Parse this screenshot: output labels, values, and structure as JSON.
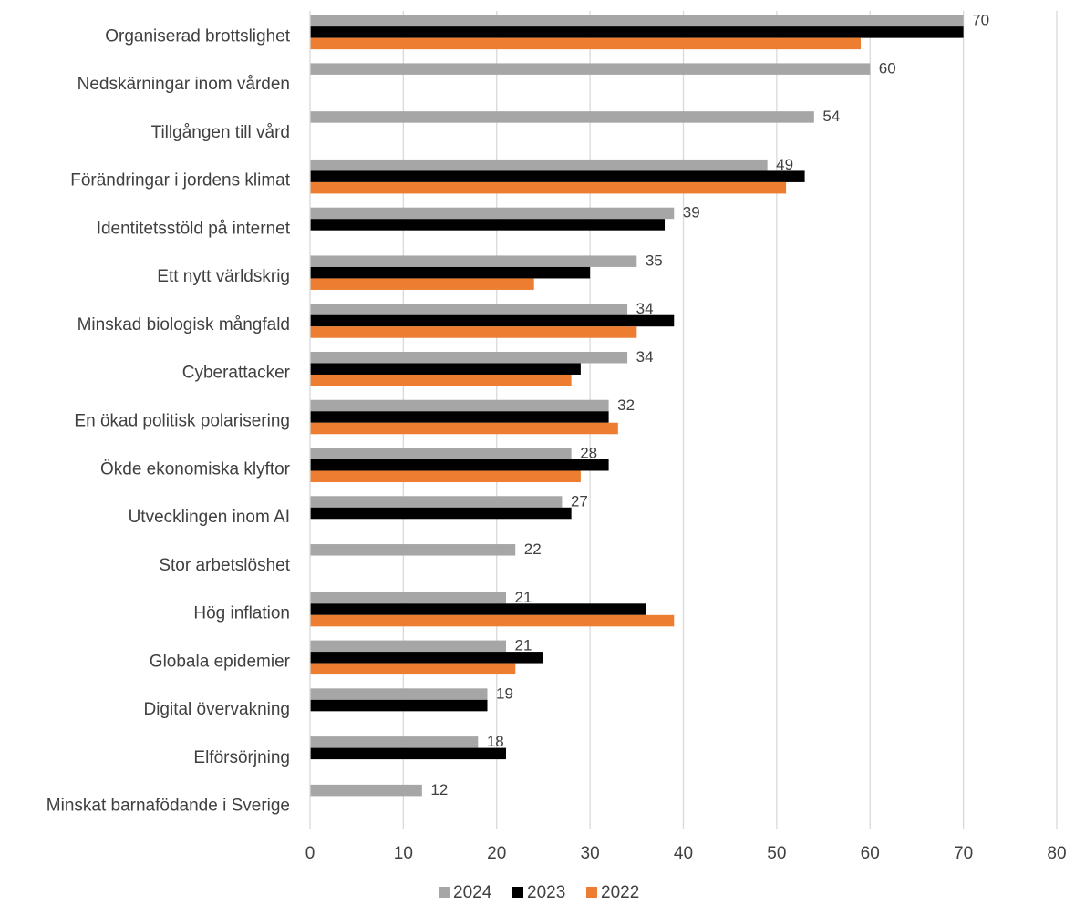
{
  "chart_data": {
    "type": "bar",
    "orientation": "horizontal",
    "categories": [
      "Organiserad brottslighet",
      "Nedskärningar inom vården",
      "Tillgången till vård",
      "Förändringar i jordens klimat",
      "Identitetsstöld på internet",
      "Ett nytt världskrig",
      "Minskad biologisk mångfald",
      "Cyberattacker",
      "En ökad politisk polarisering",
      "Ökde ekonomiska klyftor",
      "Utvecklingen inom AI",
      "Stor arbetslöshet",
      "Hög inflation",
      "Globala epidemier",
      "Digital övervakning",
      "Elförsörjning",
      "Minskat barnafödande i Sverige"
    ],
    "series": [
      {
        "name": "2024",
        "color": "#a6a6a6",
        "values": [
          70,
          60,
          54,
          49,
          39,
          35,
          34,
          34,
          32,
          28,
          27,
          22,
          21,
          21,
          19,
          18,
          12
        ]
      },
      {
        "name": "2023",
        "color": "#000000",
        "values": [
          70,
          null,
          null,
          53,
          38,
          30,
          39,
          29,
          32,
          32,
          28,
          null,
          36,
          25,
          19,
          21,
          null
        ]
      },
      {
        "name": "2022",
        "color": "#ed7d31",
        "values": [
          59,
          null,
          null,
          51,
          null,
          24,
          35,
          28,
          33,
          29,
          null,
          null,
          39,
          22,
          null,
          null,
          null
        ]
      }
    ],
    "data_labels_series": "2024",
    "xlim": [
      0,
      80
    ],
    "xticks": [
      0,
      10,
      20,
      30,
      40,
      50,
      60,
      70,
      80
    ],
    "grid": "vertical",
    "legend": "bottom-center",
    "title": "",
    "xlabel": "",
    "ylabel": ""
  }
}
